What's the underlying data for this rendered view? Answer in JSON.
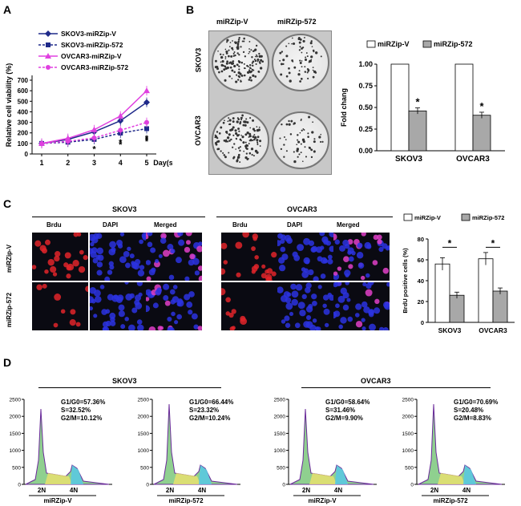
{
  "panels": {
    "A": {
      "letter": "A",
      "ylabel": "Relative cell viability (%)",
      "xunit": "Day(s)",
      "stars": [
        "*",
        "*",
        "*",
        "*",
        "*",
        "*"
      ],
      "chart_data": {
        "type": "line",
        "x": [
          1,
          2,
          3,
          4,
          5
        ],
        "ylim": [
          0,
          700
        ],
        "yticks": [
          0,
          100,
          200,
          300,
          400,
          500,
          600,
          700
        ],
        "series": [
          {
            "name": "SKOV3-miRZip-V",
            "values": [
              100,
              138,
              210,
              315,
              490
            ],
            "color": "#1f2a8a",
            "dash": false,
            "marker": "diamond"
          },
          {
            "name": "SKOV3-miRZip-572",
            "values": [
              100,
              112,
              138,
              198,
              240
            ],
            "color": "#1f2a8a",
            "dash": true,
            "marker": "square"
          },
          {
            "name": "OVCAR3-miRZip-V",
            "values": [
              100,
              148,
              230,
              360,
              600
            ],
            "color": "#e040e0",
            "dash": false,
            "marker": "triangle"
          },
          {
            "name": "OVCAR3-miRZip-572",
            "values": [
              100,
              120,
              152,
              225,
              300
            ],
            "color": "#e040e0",
            "dash": true,
            "marker": "circle"
          }
        ]
      }
    },
    "B": {
      "letter": "B",
      "col_labels": [
        "miRZip-V",
        "miRZip-572"
      ],
      "row_labels": [
        "SKOV3",
        "OVCAR3"
      ],
      "ylabel": "Fold chang",
      "stars": [
        "*",
        "*"
      ],
      "chart_data": {
        "type": "bar",
        "categories": [
          "SKOV3",
          "OVCAR3"
        ],
        "ylim": [
          0,
          1.0
        ],
        "yticks": [
          "0.00",
          "0.25",
          "0.50",
          "0.75",
          "1.00"
        ],
        "series": [
          {
            "name": "miRZip-V",
            "values": [
              1.0,
              1.0
            ],
            "color": "#ffffff"
          },
          {
            "name": "miRZip-572",
            "values": [
              0.46,
              0.41
            ],
            "color": "#a8a8a8"
          }
        ]
      }
    },
    "C": {
      "letter": "C",
      "groups": [
        "SKOV3",
        "OVCAR3"
      ],
      "stains": [
        "Brdu",
        "DAPI",
        "Merged"
      ],
      "rows": [
        "miRZip-V",
        "miRZip-572"
      ],
      "ylabel": "BrdU positive cells (%)",
      "stars": [
        "*",
        "*"
      ],
      "chart_data": {
        "type": "bar",
        "categories": [
          "SKOV3",
          "OVCAR3"
        ],
        "ylim": [
          0,
          80
        ],
        "yticks": [
          0,
          20,
          40,
          60,
          80
        ],
        "series": [
          {
            "name": "miRZip-V",
            "values": [
              56,
              61
            ],
            "color": "#ffffff"
          },
          {
            "name": "miRZip-572",
            "values": [
              26,
              30
            ],
            "color": "#a8a8a8"
          }
        ]
      }
    },
    "D": {
      "letter": "D",
      "groups": [
        "SKOV3",
        "OVCAR3"
      ],
      "ylabels": [
        "2500",
        "2000",
        "1500",
        "1000",
        "500",
        "0"
      ],
      "peak_labels": [
        "2N",
        "4N"
      ],
      "plots": [
        {
          "group": "SKOV3",
          "label": "miRZip-V",
          "g1": "G1/G0=57.36%",
          "s": "S=32.52%",
          "g2": "G2/M=10.12%"
        },
        {
          "group": "SKOV3",
          "label": "miRZip-572",
          "g1": "G1/G0=66.44%",
          "s": "S=23.32%",
          "g2": "G2/M=10.24%"
        },
        {
          "group": "OVCAR3",
          "label": "miRZip-V",
          "g1": "G1/G0=58.64%",
          "s": "S=31.46%",
          "g2": "G2/M=9.90%"
        },
        {
          "group": "OVCAR3",
          "label": "miRZip-572",
          "g1": "G1/G0=70.69%",
          "s": "S=20.48%",
          "g2": "G2/M=8.83%"
        }
      ]
    }
  }
}
